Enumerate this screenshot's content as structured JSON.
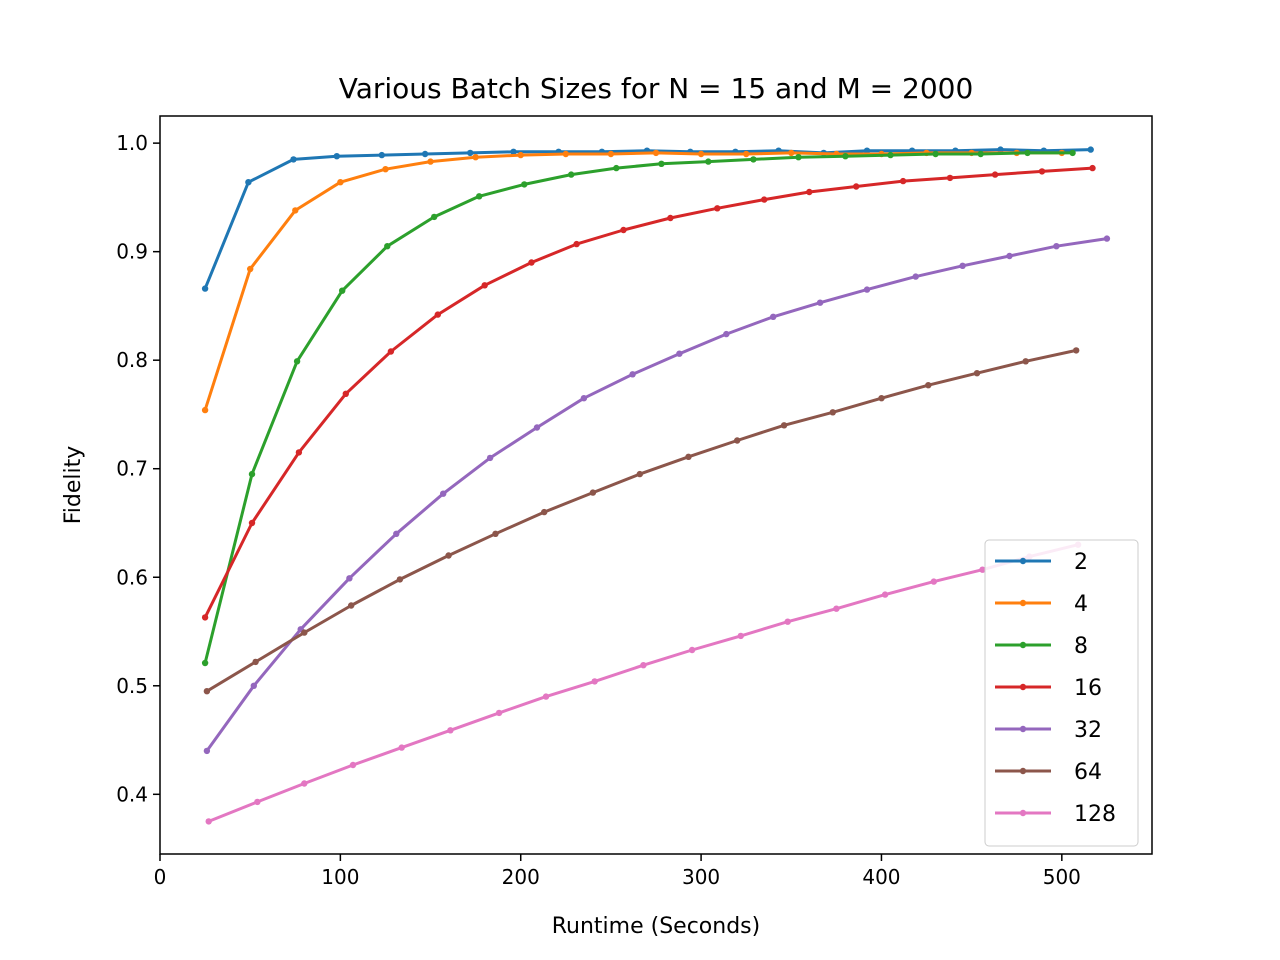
{
  "chart_data": {
    "type": "line",
    "title": "Various Batch Sizes for N = 15 and M = 2000",
    "xlabel": "Runtime (Seconds)",
    "ylabel": "Fidelity",
    "xlim": [
      0,
      550
    ],
    "ylim": [
      0.345,
      1.025
    ],
    "xticks": [
      0,
      100,
      200,
      300,
      400,
      500
    ],
    "yticks": [
      0.4,
      0.5,
      0.6,
      0.7,
      0.8,
      0.9,
      1.0
    ],
    "xtick_labels": [
      "0",
      "100",
      "200",
      "300",
      "400",
      "500"
    ],
    "ytick_labels": [
      "0.4",
      "0.5",
      "0.6",
      "0.7",
      "0.8",
      "0.9",
      "1.0"
    ],
    "grid": false,
    "legend_position": "lower-right",
    "series": [
      {
        "name": "2",
        "color": "#1f77b4",
        "x": [
          25,
          49,
          74,
          98,
          123,
          147,
          172,
          196,
          221,
          245,
          270,
          294,
          319,
          343,
          368,
          392,
          417,
          441,
          466,
          490,
          516
        ],
        "y": [
          0.866,
          0.964,
          0.985,
          0.988,
          0.989,
          0.99,
          0.991,
          0.992,
          0.992,
          0.992,
          0.993,
          0.992,
          0.992,
          0.993,
          0.991,
          0.993,
          0.993,
          0.993,
          0.994,
          0.993,
          0.994
        ]
      },
      {
        "name": "4",
        "color": "#ff7f0e",
        "x": [
          25,
          50,
          75,
          100,
          125,
          150,
          175,
          200,
          225,
          250,
          275,
          300,
          325,
          350,
          375,
          400,
          425,
          450,
          475,
          500
        ],
        "y": [
          0.754,
          0.884,
          0.938,
          0.964,
          0.976,
          0.983,
          0.987,
          0.989,
          0.99,
          0.99,
          0.991,
          0.99,
          0.99,
          0.991,
          0.99,
          0.99,
          0.991,
          0.991,
          0.991,
          0.991
        ]
      },
      {
        "name": "8",
        "color": "#2ca02c",
        "x": [
          25,
          51,
          76,
          101,
          126,
          152,
          177,
          202,
          228,
          253,
          278,
          304,
          329,
          354,
          380,
          405,
          430,
          455,
          481,
          506
        ],
        "y": [
          0.521,
          0.695,
          0.799,
          0.864,
          0.905,
          0.932,
          0.951,
          0.962,
          0.971,
          0.977,
          0.981,
          0.983,
          0.985,
          0.987,
          0.988,
          0.989,
          0.99,
          0.99,
          0.991,
          0.991
        ]
      },
      {
        "name": "16",
        "color": "#d62728",
        "x": [
          25,
          51,
          77,
          103,
          128,
          154,
          180,
          206,
          231,
          257,
          283,
          309,
          335,
          360,
          386,
          412,
          438,
          463,
          489,
          517
        ],
        "y": [
          0.563,
          0.65,
          0.715,
          0.769,
          0.808,
          0.842,
          0.869,
          0.89,
          0.907,
          0.92,
          0.931,
          0.94,
          0.948,
          0.955,
          0.96,
          0.965,
          0.968,
          0.971,
          0.974,
          0.977
        ]
      },
      {
        "name": "32",
        "color": "#9467bd",
        "x": [
          26,
          52,
          78,
          105,
          131,
          157,
          183,
          209,
          235,
          262,
          288,
          314,
          340,
          366,
          392,
          419,
          445,
          471,
          497,
          525
        ],
        "y": [
          0.44,
          0.5,
          0.552,
          0.599,
          0.64,
          0.677,
          0.71,
          0.738,
          0.765,
          0.787,
          0.806,
          0.824,
          0.84,
          0.853,
          0.865,
          0.877,
          0.887,
          0.896,
          0.905,
          0.912
        ]
      },
      {
        "name": "64",
        "color": "#8c564b",
        "x": [
          26,
          53,
          80,
          106,
          133,
          160,
          186,
          213,
          240,
          266,
          293,
          320,
          346,
          373,
          400,
          426,
          453,
          480,
          508
        ],
        "y": [
          0.495,
          0.522,
          0.549,
          0.574,
          0.598,
          0.62,
          0.64,
          0.66,
          0.678,
          0.695,
          0.711,
          0.726,
          0.74,
          0.752,
          0.765,
          0.777,
          0.788,
          0.799,
          0.809
        ]
      },
      {
        "name": "128",
        "color": "#e377c2",
        "x": [
          27,
          54,
          80,
          107,
          134,
          161,
          188,
          214,
          241,
          268,
          295,
          322,
          348,
          375,
          402,
          429,
          456,
          482,
          509
        ],
        "y": [
          0.375,
          0.393,
          0.41,
          0.427,
          0.443,
          0.459,
          0.475,
          0.49,
          0.504,
          0.519,
          0.533,
          0.546,
          0.559,
          0.571,
          0.584,
          0.596,
          0.607,
          0.619,
          0.63
        ]
      }
    ]
  }
}
